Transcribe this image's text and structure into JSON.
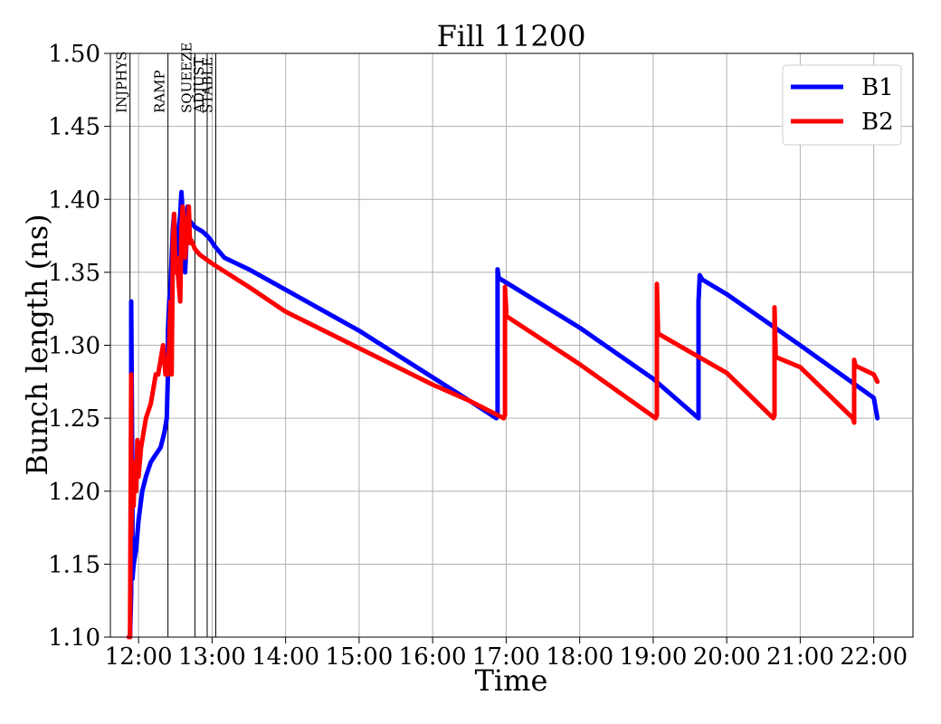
{
  "chart_data": {
    "type": "line",
    "title": "Fill 11200",
    "xlabel": "Time",
    "ylabel": "Bunch length (ns)",
    "xlim": [
      "11:37",
      "22:32"
    ],
    "ylim": [
      1.1,
      1.5
    ],
    "x_ticks": [
      "12:00",
      "13:00",
      "14:00",
      "15:00",
      "16:00",
      "17:00",
      "18:00",
      "19:00",
      "20:00",
      "21:00",
      "22:00"
    ],
    "y_ticks": [
      "1.10",
      "1.15",
      "1.20",
      "1.25",
      "1.30",
      "1.35",
      "1.40",
      "1.45",
      "1.50"
    ],
    "grid": true,
    "legend_position": "top-right",
    "colors": {
      "B1": "#0000ff",
      "B2": "#ff0000",
      "phase_lines": "#000000"
    },
    "phases": [
      {
        "label": "INJPHYS",
        "time": "11:53"
      },
      {
        "label": "RAMP",
        "time": "12:24"
      },
      {
        "label": "SQUEEZE",
        "time": "12:46"
      },
      {
        "label": "ADJUST",
        "time": "12:56"
      },
      {
        "label": "STABLE",
        "time": "13:03"
      }
    ],
    "series": [
      {
        "name": "B1",
        "x": [
          "11:53",
          "11:54",
          "11:54",
          "11:55",
          "11:55",
          "11:56",
          "11:58",
          "12:00",
          "12:03",
          "12:06",
          "12:10",
          "12:14",
          "12:18",
          "12:21",
          "12:23",
          "12:24",
          "12:24",
          "12:25",
          "12:26",
          "12:27",
          "12:28",
          "12:29",
          "12:30",
          "12:31",
          "12:32",
          "12:33",
          "12:34",
          "12:35",
          "12:36",
          "12:37",
          "12:38",
          "12:39",
          "12:40",
          "12:41",
          "12:42",
          "12:43",
          "12:44",
          "12:45",
          "12:46",
          "12:48",
          "12:52",
          "12:56",
          "12:59",
          "13:02",
          "13:05",
          "13:10",
          "13:30",
          "14:00",
          "15:00",
          "16:00",
          "16:30",
          "16:52",
          "16:53",
          "16:53",
          "16:54",
          "17:00",
          "18:00",
          "19:00",
          "19:37",
          "19:37",
          "19:38",
          "19:40",
          "20:00",
          "21:00",
          "22:00",
          "22:03"
        ],
        "y": [
          1.1,
          1.13,
          1.33,
          1.2,
          1.14,
          1.15,
          1.16,
          1.18,
          1.2,
          1.21,
          1.22,
          1.225,
          1.23,
          1.24,
          1.25,
          1.28,
          1.31,
          1.33,
          1.34,
          1.36,
          1.38,
          1.39,
          1.37,
          1.36,
          1.37,
          1.38,
          1.39,
          1.405,
          1.39,
          1.38,
          1.35,
          1.37,
          1.395,
          1.385,
          1.385,
          1.384,
          1.383,
          1.382,
          1.381,
          1.38,
          1.378,
          1.375,
          1.372,
          1.368,
          1.365,
          1.36,
          1.352,
          1.338,
          1.31,
          1.278,
          1.262,
          1.25,
          1.252,
          1.352,
          1.346,
          1.343,
          1.312,
          1.277,
          1.25,
          1.33,
          1.348,
          1.345,
          1.335,
          1.3,
          1.264,
          1.25
        ]
      },
      {
        "name": "B2",
        "x": [
          "11:52",
          "11:53",
          "11:53",
          "11:54",
          "11:54",
          "11:55",
          "11:56",
          "11:57",
          "11:58",
          "11:59",
          "12:00",
          "12:02",
          "12:04",
          "12:06",
          "12:08",
          "12:10",
          "12:12",
          "12:14",
          "12:16",
          "12:18",
          "12:20",
          "12:22",
          "12:24",
          "12:25",
          "12:26",
          "12:27",
          "12:28",
          "12:29",
          "12:30",
          "12:31",
          "12:32",
          "12:33",
          "12:34",
          "12:35",
          "12:36",
          "12:37",
          "12:38",
          "12:39",
          "12:40",
          "12:41",
          "12:42",
          "12:43",
          "12:44",
          "12:45",
          "12:46",
          "12:50",
          "13:00",
          "13:30",
          "14:00",
          "15:00",
          "16:00",
          "16:30",
          "16:58",
          "16:59",
          "16:59",
          "17:00",
          "17:00",
          "18:00",
          "19:02",
          "19:03",
          "19:03",
          "19:04",
          "20:00",
          "20:38",
          "20:39",
          "20:39",
          "20:40",
          "21:00",
          "21:43",
          "21:44",
          "21:44",
          "21:45",
          "22:00",
          "22:03"
        ],
        "y": [
          1.1,
          1.1,
          1.1,
          1.28,
          1.17,
          1.21,
          1.19,
          1.22,
          1.2,
          1.235,
          1.21,
          1.23,
          1.24,
          1.25,
          1.255,
          1.26,
          1.27,
          1.28,
          1.28,
          1.29,
          1.3,
          1.28,
          1.28,
          1.3,
          1.33,
          1.28,
          1.37,
          1.39,
          1.35,
          1.36,
          1.35,
          1.34,
          1.33,
          1.38,
          1.395,
          1.385,
          1.36,
          1.37,
          1.38,
          1.395,
          1.37,
          1.372,
          1.37,
          1.368,
          1.366,
          1.362,
          1.356,
          1.34,
          1.323,
          1.298,
          1.273,
          1.262,
          1.25,
          1.252,
          1.34,
          1.325,
          1.32,
          1.287,
          1.25,
          1.252,
          1.342,
          1.308,
          1.281,
          1.25,
          1.252,
          1.326,
          1.292,
          1.285,
          1.25,
          1.247,
          1.29,
          1.286,
          1.28,
          1.275
        ]
      }
    ]
  }
}
